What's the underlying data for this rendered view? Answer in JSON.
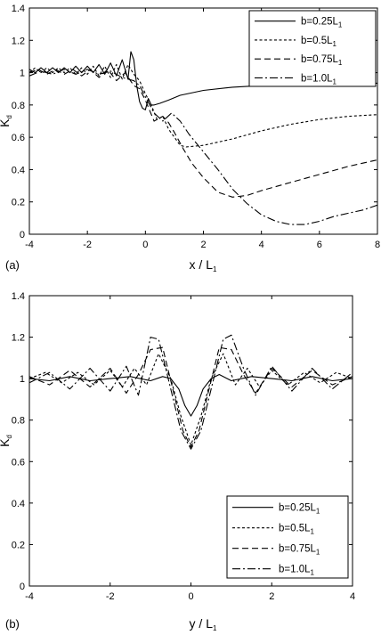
{
  "chart_data": [
    {
      "type": "line",
      "panel_label": "(a)",
      "xlabel": "x / L",
      "xlabel_sub": "1",
      "ylabel": "K",
      "ylabel_sub": "d",
      "xlim": [
        -4,
        8
      ],
      "ylim": [
        0,
        1.4
      ],
      "xticks": [
        -4,
        -2,
        0,
        2,
        4,
        6,
        8
      ],
      "yticks": [
        0,
        0.2,
        0.4,
        0.6,
        0.8,
        1,
        1.2,
        1.4
      ],
      "legend_position": "top-right",
      "series": [
        {
          "name": "b=0.25L",
          "name_sub": "1",
          "style": "solid",
          "x": [
            -4,
            -3.8,
            -3.6,
            -3.4,
            -3.2,
            -3,
            -2.8,
            -2.6,
            -2.4,
            -2.2,
            -2,
            -1.8,
            -1.6,
            -1.4,
            -1.2,
            -1,
            -0.8,
            -0.6,
            -0.5,
            -0.4,
            -0.3,
            -0.2,
            -0.1,
            0,
            0.1,
            0.2,
            0.3,
            0.5,
            0.8,
            1.2,
            2,
            3,
            4,
            5,
            6,
            7,
            8
          ],
          "y": [
            1.02,
            1.0,
            1.03,
            1.0,
            1.03,
            1.0,
            1.03,
            1.0,
            1.04,
            1.0,
            1.04,
            1.0,
            1.05,
            0.99,
            1.06,
            0.98,
            1.08,
            0.96,
            1.13,
            1.08,
            0.92,
            0.82,
            0.78,
            0.77,
            0.84,
            0.8,
            0.8,
            0.81,
            0.83,
            0.86,
            0.89,
            0.91,
            0.92,
            0.925,
            0.93,
            0.935,
            0.935
          ]
        },
        {
          "name": "b=0.5L",
          "name_sub": "1",
          "style": "short-dash",
          "x": [
            -4,
            -3.8,
            -3.6,
            -3.4,
            -3.2,
            -3,
            -2.8,
            -2.6,
            -2.4,
            -2.2,
            -2,
            -1.8,
            -1.6,
            -1.4,
            -1.2,
            -1,
            -0.8,
            -0.6,
            -0.4,
            -0.2,
            0,
            0.2,
            0.4,
            0.6,
            0.8,
            1,
            1.2,
            1.4,
            2,
            3,
            4,
            5,
            6,
            7,
            8
          ],
          "y": [
            1.0,
            1.03,
            1.0,
            1.03,
            1.0,
            1.03,
            1.0,
            1.03,
            0.99,
            1.03,
            0.99,
            1.04,
            0.98,
            1.04,
            0.97,
            1.05,
            0.96,
            1.05,
            0.99,
            0.95,
            0.87,
            0.8,
            0.71,
            0.73,
            0.65,
            0.6,
            0.55,
            0.54,
            0.55,
            0.59,
            0.64,
            0.68,
            0.71,
            0.73,
            0.74
          ]
        },
        {
          "name": "b=0.75L",
          "name_sub": "1",
          "style": "long-dash",
          "x": [
            -4,
            -3.7,
            -3.4,
            -3.1,
            -2.8,
            -2.5,
            -2.2,
            -1.9,
            -1.6,
            -1.3,
            -1,
            -0.7,
            -0.4,
            -0.2,
            0,
            0.3,
            0.6,
            0.8,
            1,
            1.3,
            1.6,
            2,
            2.5,
            3,
            3.5,
            4,
            5,
            6,
            7,
            8
          ],
          "y": [
            1.0,
            1.02,
            0.99,
            1.02,
            0.99,
            1.02,
            0.98,
            1.02,
            0.97,
            1.02,
            0.95,
            1.0,
            0.92,
            0.9,
            0.83,
            0.7,
            0.73,
            0.69,
            0.63,
            0.53,
            0.44,
            0.35,
            0.26,
            0.23,
            0.24,
            0.27,
            0.32,
            0.37,
            0.42,
            0.46
          ]
        },
        {
          "name": "b=1.0L",
          "name_sub": "1",
          "style": "dash-dot",
          "x": [
            -4,
            -3.6,
            -3.2,
            -2.8,
            -2.4,
            -2,
            -1.6,
            -1.2,
            -0.8,
            -0.4,
            -0.2,
            0,
            0.3,
            0.6,
            0.9,
            1.2,
            1.5,
            2,
            2.5,
            3,
            3.5,
            4,
            4.5,
            5,
            5.5,
            6,
            6.5,
            7,
            7.5,
            8
          ],
          "y": [
            0.98,
            1.01,
            0.99,
            1.02,
            0.99,
            1.02,
            0.99,
            1.01,
            0.97,
            0.95,
            0.92,
            0.85,
            0.75,
            0.7,
            0.75,
            0.7,
            0.62,
            0.51,
            0.4,
            0.28,
            0.19,
            0.12,
            0.08,
            0.06,
            0.06,
            0.08,
            0.11,
            0.13,
            0.15,
            0.18
          ]
        }
      ]
    },
    {
      "type": "line",
      "panel_label": "(b)",
      "xlabel": "y / L",
      "xlabel_sub": "1",
      "ylabel": "K",
      "ylabel_sub": "d",
      "xlim": [
        -4,
        4
      ],
      "ylim": [
        0,
        1.4
      ],
      "xticks": [
        -4,
        -2,
        0,
        2,
        4
      ],
      "yticks": [
        0,
        0.2,
        0.4,
        0.6,
        0.8,
        1,
        1.2,
        1.4
      ],
      "legend_position": "bottom-right",
      "series": [
        {
          "name": "b=0.25L",
          "name_sub": "1",
          "style": "solid",
          "x": [
            -4,
            -3.5,
            -3,
            -2.5,
            -2,
            -1.5,
            -1,
            -0.7,
            -0.5,
            -0.3,
            -0.15,
            0,
            0.15,
            0.3,
            0.5,
            0.7,
            1,
            1.5,
            2,
            2.5,
            3,
            3.5,
            4
          ],
          "y": [
            1.0,
            0.99,
            1.01,
            0.99,
            1.0,
            1.01,
            0.99,
            1.01,
            1.0,
            0.95,
            0.87,
            0.82,
            0.87,
            0.95,
            1.0,
            1.02,
            0.99,
            1.01,
            1.0,
            0.99,
            1.01,
            0.99,
            1.0
          ]
        },
        {
          "name": "b=0.5L",
          "name_sub": "1",
          "style": "short-dash",
          "x": [
            -4,
            -3.6,
            -3.2,
            -2.8,
            -2.4,
            -2,
            -1.7,
            -1.4,
            -1.1,
            -0.8,
            -0.5,
            -0.25,
            0,
            0.25,
            0.5,
            0.8,
            1.1,
            1.4,
            1.7,
            2,
            2.4,
            2.8,
            3.2,
            3.6,
            4
          ],
          "y": [
            1.0,
            1.03,
            0.98,
            1.03,
            0.97,
            1.04,
            0.96,
            1.05,
            0.97,
            1.12,
            1.0,
            0.82,
            0.68,
            0.82,
            1.0,
            1.12,
            0.97,
            1.05,
            0.96,
            1.04,
            0.97,
            1.03,
            0.98,
            1.03,
            1.0
          ]
        },
        {
          "name": "b=0.75L",
          "name_sub": "1",
          "style": "long-dash",
          "x": [
            -4,
            -3.5,
            -3,
            -2.5,
            -2,
            -1.6,
            -1.3,
            -1.0,
            -0.7,
            -0.45,
            -0.2,
            0,
            0.2,
            0.45,
            0.7,
            1.0,
            1.3,
            1.6,
            2,
            2.5,
            3,
            3.5,
            4
          ],
          "y": [
            1.01,
            0.97,
            1.04,
            0.96,
            1.05,
            0.93,
            1.02,
            1.14,
            1.15,
            0.95,
            0.75,
            0.67,
            0.75,
            0.95,
            1.15,
            1.14,
            1.02,
            0.93,
            1.05,
            0.96,
            1.04,
            0.97,
            1.01
          ]
        },
        {
          "name": "b=1.0L",
          "name_sub": "1",
          "style": "dash-dot",
          "x": [
            -4,
            -3.5,
            -3,
            -2.5,
            -2,
            -1.6,
            -1.3,
            -1.0,
            -0.8,
            -0.5,
            -0.25,
            0,
            0.25,
            0.5,
            0.8,
            1.0,
            1.3,
            1.6,
            2,
            2.5,
            3,
            3.5,
            4
          ],
          "y": [
            0.98,
            1.03,
            0.95,
            1.05,
            0.94,
            1.06,
            0.92,
            1.2,
            1.19,
            0.95,
            0.75,
            0.66,
            0.75,
            0.95,
            1.19,
            1.21,
            1.05,
            0.92,
            1.06,
            0.94,
            1.05,
            0.95,
            1.03
          ]
        }
      ]
    }
  ]
}
